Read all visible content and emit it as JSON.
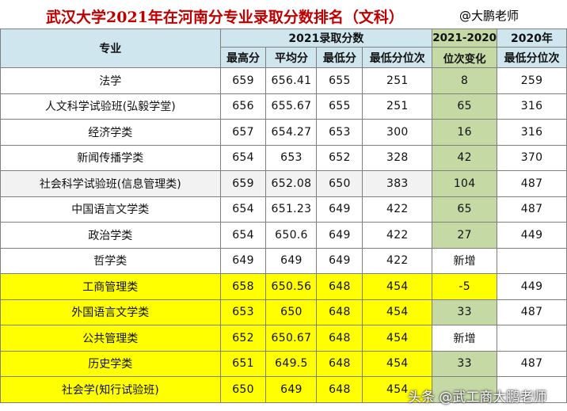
{
  "title": "武汉大学2021年在河南分专业录取分数排名（文科）",
  "author": "@大鹏老师",
  "headers": {
    "major": "专业",
    "group_2021": "2021录取分数",
    "group_change": "2021-2020",
    "group_2020": "2020年",
    "cols": [
      "最高分",
      "平均分",
      "最低分",
      "最低分位次",
      "位次变化",
      "最低分位次"
    ]
  },
  "rows": [
    {
      "major": "法学",
      "max": "659",
      "avg": "656.41",
      "min": "655",
      "rank": "251",
      "change": "8",
      "rank2020": "259"
    },
    {
      "major": "人文科学试验班(弘毅学堂)",
      "max": "656",
      "avg": "655.67",
      "min": "655",
      "rank": "251",
      "change": "65",
      "rank2020": "316"
    },
    {
      "major": "经济学类",
      "max": "657",
      "avg": "654.27",
      "min": "653",
      "rank": "300",
      "change": "16",
      "rank2020": "316"
    },
    {
      "major": "新闻传播学类",
      "max": "654",
      "avg": "653",
      "min": "652",
      "rank": "328",
      "change": "42",
      "rank2020": "370"
    },
    {
      "major": "社会科学试验班(信息管理类)",
      "max": "659",
      "avg": "652.08",
      "min": "650",
      "rank": "383",
      "change": "104",
      "rank2020": "487"
    },
    {
      "major": "中国语言文学类",
      "max": "654",
      "avg": "651.23",
      "min": "649",
      "rank": "422",
      "change": "65",
      "rank2020": "487"
    },
    {
      "major": "政治学类",
      "max": "654",
      "avg": "650.6",
      "min": "649",
      "rank": "422",
      "change": "27",
      "rank2020": "449"
    },
    {
      "major": "哲学类",
      "max": "649",
      "avg": "649",
      "min": "649",
      "rank": "422",
      "change": "新增",
      "rank2020": ""
    },
    {
      "major": "工商管理类",
      "max": "658",
      "avg": "650.56",
      "min": "648",
      "rank": "454",
      "change": "-5",
      "rank2020": "449"
    },
    {
      "major": "外国语言文学类",
      "max": "653",
      "avg": "650",
      "min": "648",
      "rank": "454",
      "change": "33",
      "rank2020": "487"
    },
    {
      "major": "公共管理类",
      "max": "652",
      "avg": "650.67",
      "min": "648",
      "rank": "454",
      "change": "新增",
      "rank2020": ""
    },
    {
      "major": "历史学类",
      "max": "651",
      "avg": "649.5",
      "min": "648",
      "rank": "454",
      "change": "33",
      "rank2020": "487"
    },
    {
      "major": "社会学(知行试验班)",
      "max": "650",
      "avg": "649",
      "min": "648",
      "rank": "454",
      "change": "",
      "rank2020": ""
    }
  ],
  "watermark": "头条 @武工商大鹏老师"
}
